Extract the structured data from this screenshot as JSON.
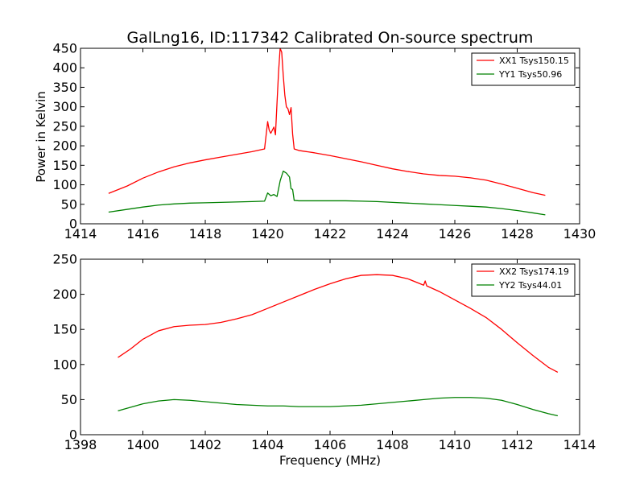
{
  "chart_data": [
    {
      "type": "line",
      "title": "GalLng16, ID:117342 Calibrated On-source spectrum",
      "xlabel": "",
      "ylabel": "Power in Kelvin",
      "xlim": [
        1414,
        1430
      ],
      "ylim": [
        0,
        450
      ],
      "xticks": [
        1414,
        1416,
        1418,
        1420,
        1422,
        1424,
        1426,
        1428,
        1430
      ],
      "yticks": [
        0,
        50,
        100,
        150,
        200,
        250,
        300,
        350,
        400,
        450
      ],
      "legend_position": "top-right",
      "series": [
        {
          "name": "XX1 Tsys150.15",
          "color": "#ff0000",
          "x": [
            1414.9,
            1415.5,
            1416.0,
            1416.5,
            1417.0,
            1417.5,
            1418.0,
            1418.5,
            1419.0,
            1419.5,
            1419.9,
            1420.0,
            1420.05,
            1420.1,
            1420.2,
            1420.25,
            1420.3,
            1420.35,
            1420.4,
            1420.45,
            1420.5,
            1420.55,
            1420.6,
            1420.65,
            1420.7,
            1420.75,
            1420.8,
            1420.85,
            1421.0,
            1421.5,
            1422.0,
            1422.5,
            1423.0,
            1423.5,
            1424.0,
            1424.5,
            1425.0,
            1425.5,
            1426.0,
            1426.5,
            1427.0,
            1427.5,
            1428.0,
            1428.5,
            1428.9
          ],
          "values": [
            78,
            97,
            117,
            133,
            146,
            156,
            164,
            171,
            178,
            185,
            192,
            262,
            240,
            232,
            248,
            228,
            310,
            390,
            450,
            440,
            380,
            330,
            300,
            295,
            280,
            298,
            230,
            192,
            188,
            182,
            175,
            167,
            159,
            150,
            141,
            134,
            128,
            124,
            122,
            118,
            112,
            102,
            91,
            80,
            73
          ]
        },
        {
          "name": "YY1 Tsys50.96",
          "color": "#008000",
          "x": [
            1414.9,
            1415.5,
            1416.0,
            1416.5,
            1417.0,
            1417.5,
            1418.0,
            1418.5,
            1419.0,
            1419.5,
            1419.9,
            1420.0,
            1420.1,
            1420.2,
            1420.3,
            1420.4,
            1420.5,
            1420.6,
            1420.7,
            1420.75,
            1420.8,
            1420.85,
            1421.0,
            1421.5,
            1422.0,
            1422.5,
            1423.0,
            1423.5,
            1424.0,
            1424.5,
            1425.0,
            1425.5,
            1426.0,
            1426.5,
            1427.0,
            1427.5,
            1428.0,
            1428.5,
            1428.9
          ],
          "values": [
            30,
            37,
            43,
            48,
            51,
            53,
            54,
            55,
            56,
            57,
            58,
            79,
            72,
            75,
            70,
            110,
            135,
            130,
            120,
            90,
            88,
            60,
            59,
            59,
            59,
            59,
            58,
            57,
            55,
            53,
            51,
            49,
            47,
            45,
            43,
            39,
            34,
            28,
            23
          ]
        }
      ]
    },
    {
      "type": "line",
      "title": "",
      "xlabel": "Frequency (MHz)",
      "ylabel": "",
      "xlim": [
        1398,
        1414
      ],
      "ylim": [
        0,
        250
      ],
      "xticks": [
        1398,
        1400,
        1402,
        1404,
        1406,
        1408,
        1410,
        1412,
        1414
      ],
      "yticks": [
        0,
        50,
        100,
        150,
        200,
        250
      ],
      "legend_position": "top-right",
      "series": [
        {
          "name": "XX2 Tsys174.19",
          "color": "#ff0000",
          "x": [
            1399.2,
            1399.6,
            1400.0,
            1400.5,
            1401.0,
            1401.5,
            1402.0,
            1402.5,
            1403.0,
            1403.5,
            1404.0,
            1404.5,
            1405.0,
            1405.5,
            1406.0,
            1406.5,
            1407.0,
            1407.5,
            1408.0,
            1408.5,
            1409.0,
            1409.05,
            1409.1,
            1409.5,
            1410.0,
            1410.5,
            1411.0,
            1411.5,
            1412.0,
            1412.5,
            1413.0,
            1413.3
          ],
          "values": [
            110,
            122,
            136,
            148,
            154,
            156,
            157,
            160,
            165,
            171,
            180,
            189,
            198,
            207,
            215,
            222,
            227,
            228,
            227,
            222,
            213,
            219,
            212,
            204,
            192,
            180,
            167,
            150,
            131,
            113,
            96,
            89
          ]
        },
        {
          "name": "YY2 Tsys44.01",
          "color": "#008000",
          "x": [
            1399.2,
            1399.6,
            1400.0,
            1400.5,
            1401.0,
            1401.5,
            1402.0,
            1402.5,
            1403.0,
            1403.5,
            1404.0,
            1404.5,
            1405.0,
            1405.5,
            1406.0,
            1406.5,
            1407.0,
            1407.5,
            1408.0,
            1408.5,
            1409.0,
            1409.5,
            1410.0,
            1410.5,
            1411.0,
            1411.5,
            1412.0,
            1412.5,
            1413.0,
            1413.3
          ],
          "values": [
            34,
            39,
            44,
            48,
            50,
            49,
            47,
            45,
            43,
            42,
            41,
            41,
            40,
            40,
            40,
            41,
            42,
            44,
            46,
            48,
            50,
            52,
            53,
            53,
            52,
            49,
            43,
            36,
            30,
            27
          ]
        }
      ]
    }
  ]
}
